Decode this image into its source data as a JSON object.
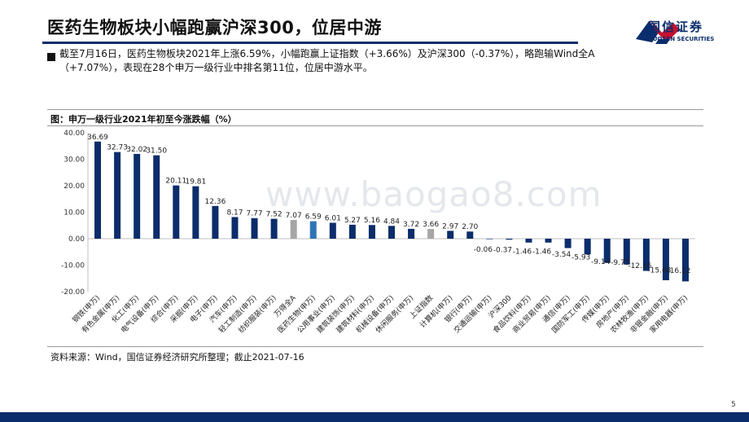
{
  "header": {
    "title": "医药生物板块小幅跑赢沪深300，位居中游",
    "logo_cn": "国信证券",
    "logo_en": "GUOSEN SECURITIES"
  },
  "summary": {
    "line1": "截至7月16日，医药生物板块2021年上涨6.59%，小幅跑赢上证指数（+3.66%）及沪深300（-0.37%），略跑输Wind全A",
    "line2": "（+7.07%），表现在28个申万一级行业中排名第11位，位居中游水平。"
  },
  "source": "资料来源：Wind，国信证券经济研究所整理；截止2021-07-16",
  "page_number": "5",
  "watermark": "www.baogao8.com",
  "colors": {
    "bar_default": "#0b2d6b",
    "bar_index": "#a6a6a6",
    "bar_highlight": "#2e75b6",
    "title_rule": "#0b2d6b",
    "logo_red": "#c8102e"
  },
  "chart_data": {
    "type": "bar",
    "title": "图：申万一级行业2021年初至今涨跌幅（%）",
    "xlabel": "",
    "ylabel": "",
    "ylim": [
      -20,
      40
    ],
    "yticks": [
      "40.00",
      "30.00",
      "20.00",
      "10.00",
      "0.00",
      "-10.00",
      "-20.00"
    ],
    "grid": false,
    "categories": [
      "钢铁(申万)",
      "有色金属(申万)",
      "化工(申万)",
      "电气设备(申万)",
      "综合(申万)",
      "采掘(申万)",
      "电子(申万)",
      "汽车(申万)",
      "轻工制造(申万)",
      "纺织服装(申万)",
      "万得全A",
      "医药生物(申万)",
      "公用事业(申万)",
      "建筑装饰(申万)",
      "建筑材料(申万)",
      "机械设备(申万)",
      "休闲服务(申万)",
      "上证指数",
      "计算机(申万)",
      "银行(申万)",
      "交通运输(申万)",
      "沪深300",
      "食品饮料(申万)",
      "商业贸易(申万)",
      "通信(申万)",
      "国防军工(申万)",
      "传媒(申万)",
      "房地产(申万)",
      "农林牧渔(申万)",
      "非银金融(申万)",
      "家用电器(申万)"
    ],
    "values": [
      36.69,
      32.73,
      32.02,
      31.5,
      20.11,
      19.81,
      12.36,
      8.17,
      7.77,
      7.52,
      7.07,
      6.59,
      6.01,
      5.27,
      5.16,
      4.84,
      3.72,
      3.66,
      2.97,
      2.7,
      -0.06,
      -0.37,
      -1.46,
      -1.46,
      -3.54,
      -5.93,
      -9.14,
      -9.75,
      -12.16,
      -15.68,
      -16.12
    ],
    "labels": [
      "36.69",
      "32.73",
      "32.02",
      "31.50",
      "20.11",
      "19.81",
      "12.36",
      "8.17",
      "7.77",
      "7.52",
      "7.07",
      "6.59",
      "6.01",
      "5.27",
      "5.16",
      "4.84",
      "3.72",
      "3.66",
      "2.97",
      "2.70",
      "-0.06",
      "-0.37",
      "-1.46",
      "-1.46",
      "-3.54",
      "-5.93",
      "-9.14",
      "-9.75",
      "-12.16",
      "-15.68",
      "-16.12"
    ],
    "bar_kind": [
      "d",
      "d",
      "d",
      "d",
      "d",
      "d",
      "d",
      "d",
      "d",
      "d",
      "i",
      "h",
      "d",
      "d",
      "d",
      "d",
      "d",
      "i",
      "d",
      "d",
      "d",
      "d",
      "d",
      "d",
      "d",
      "d",
      "d",
      "d",
      "d",
      "d",
      "d"
    ]
  }
}
